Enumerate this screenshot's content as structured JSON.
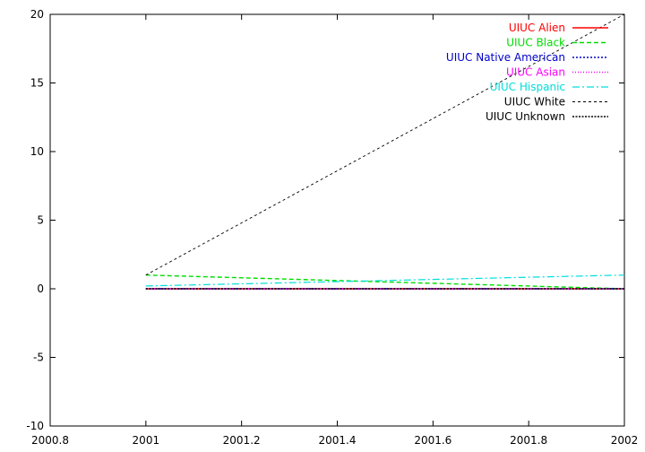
{
  "chart_data": {
    "type": "line",
    "title": "",
    "xlabel": "",
    "ylabel": "",
    "xlim": [
      2000.8,
      2002
    ],
    "ylim": [
      -10,
      20
    ],
    "x_ticks": [
      "2000.8",
      "2001",
      "2001.2",
      "2001.4",
      "2001.6",
      "2001.8",
      "2002"
    ],
    "y_ticks": [
      "-10",
      "-5",
      "0",
      "5",
      "10",
      "15",
      "20"
    ],
    "grid": false,
    "legend_position": "top-right",
    "x": [
      2001,
      2002
    ],
    "series": [
      {
        "name": "UIUC Alien",
        "values": [
          0,
          0
        ],
        "color": "#ff0000",
        "dash": "solid",
        "width": 1.6
      },
      {
        "name": "UIUC Black",
        "values": [
          1,
          0
        ],
        "color": "#00dd00",
        "dash": "5,3",
        "width": 1.4
      },
      {
        "name": "UIUC Native American",
        "values": [
          0,
          0
        ],
        "color": "#0000cc",
        "dash": "2,2",
        "width": 1.4
      },
      {
        "name": "UIUC Asian",
        "values": [
          0,
          0
        ],
        "color": "#ff00ff",
        "dash": "1,2",
        "width": 1.4
      },
      {
        "name": "UIUC Hispanic",
        "values": [
          0.2,
          1
        ],
        "color": "#00dddd",
        "dash": "8,3,2,3",
        "width": 1.2
      },
      {
        "name": "UIUC White",
        "values": [
          1,
          20
        ],
        "color": "#000000",
        "dash": "3,3",
        "width": 0.9
      },
      {
        "name": "UIUC Unknown",
        "values": [
          0,
          0
        ],
        "color": "#000000",
        "dash": "2,1.5",
        "width": 1.4
      }
    ]
  }
}
